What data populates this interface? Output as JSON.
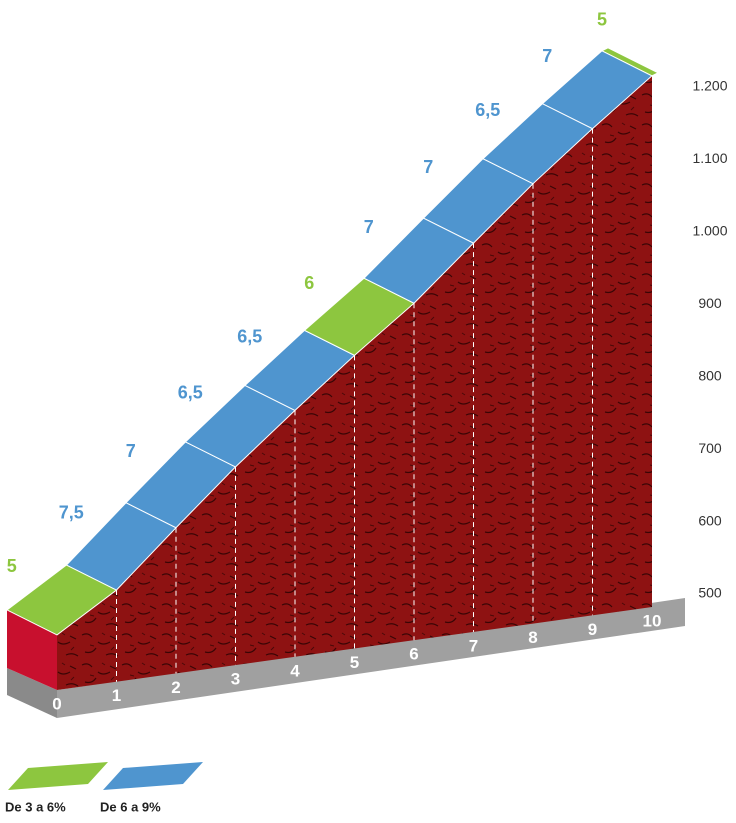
{
  "chart_data": {
    "type": "profile",
    "x": [
      "0",
      "1",
      "2",
      "3",
      "4",
      "5",
      "6",
      "7",
      "8",
      "9",
      "10"
    ],
    "values": [
      478,
      540,
      626,
      710,
      788,
      864,
      936,
      1019,
      1101,
      1177,
      1250
    ],
    "gradients": [
      5,
      7.5,
      7,
      6.5,
      6.5,
      6,
      7,
      7,
      6.5,
      7,
      5
    ],
    "gradient_labels": [
      "5",
      "7,5",
      "7",
      "6,5",
      "6,5",
      "6",
      "7",
      "7",
      "6,5",
      "7",
      "5"
    ],
    "gradient_colors": [
      "#8dc63f",
      "#4f95cf",
      "#4f95cf",
      "#4f95cf",
      "#4f95cf",
      "#8dc63f",
      "#4f95cf",
      "#4f95cf",
      "#4f95cf",
      "#4f95cf",
      "#8dc63f"
    ],
    "ylim": [
      500,
      1200
    ],
    "yticks": [
      500,
      600,
      700,
      800,
      900,
      {
        "value": 1000,
        "label": "1.000"
      },
      {
        "value": 1100,
        "label": "1.100"
      },
      {
        "value": 1200,
        "label": "1.200"
      }
    ],
    "legend": [
      {
        "name": "De 3 a 6%",
        "color": "#8dc63f"
      },
      {
        "name": "De 6 a 9%",
        "color": "#4f95cf"
      }
    ]
  }
}
